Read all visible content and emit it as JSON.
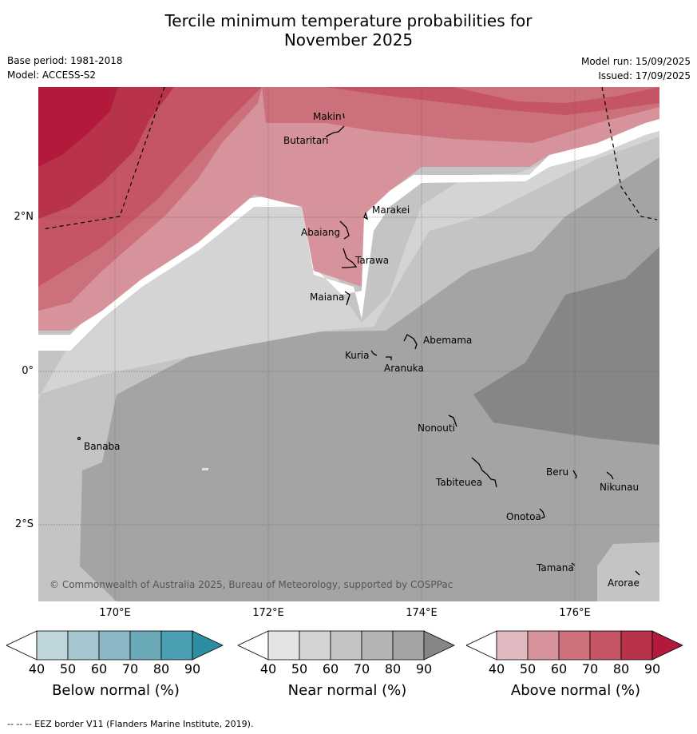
{
  "header": {
    "title_line1": "Tercile minimum temperature probabilities for",
    "title_line2": "November 2025",
    "base_period": "Base period: 1981-2018",
    "model": "Model: ACCESS-S2",
    "model_run": "Model run: 15/09/2025",
    "issued": "Issued: 17/09/2025"
  },
  "map": {
    "copyright": "© Commonwealth of Australia 2025, Bureau of Meteorology, supported by COSPPac",
    "lon_labels": [
      "170°E",
      "172°E",
      "174°E",
      "176°E"
    ],
    "lat_labels": [
      "2°N",
      "0°",
      "2°S"
    ],
    "places": [
      {
        "name": "Makin"
      },
      {
        "name": "Butaritari"
      },
      {
        "name": "Marakei"
      },
      {
        "name": "Abaiang"
      },
      {
        "name": "Tarawa"
      },
      {
        "name": "Maiana"
      },
      {
        "name": "Abemama"
      },
      {
        "name": "Kuria"
      },
      {
        "name": "Aranuka"
      },
      {
        "name": "Nonouti"
      },
      {
        "name": "Banaba"
      },
      {
        "name": "Beru"
      },
      {
        "name": "Nikunau"
      },
      {
        "name": "Tabiteuea"
      },
      {
        "name": "Onotoa"
      },
      {
        "name": "Tamana"
      },
      {
        "name": "Arorae"
      }
    ]
  },
  "colorbars": [
    {
      "title": "Below normal (%)",
      "ticks": [
        "40",
        "50",
        "60",
        "70",
        "80",
        "90"
      ],
      "colors": [
        "#ffffff",
        "#bfd5dc",
        "#a6c6cf",
        "#8ab7c3",
        "#6aa9b8",
        "#4aa0b2",
        "#2d8ea3"
      ]
    },
    {
      "title": "Near normal (%)",
      "ticks": [
        "40",
        "50",
        "60",
        "70",
        "80",
        "90"
      ],
      "colors": [
        "#ffffff",
        "#e3e3e3",
        "#d4d4d4",
        "#c4c4c4",
        "#b4b4b4",
        "#a4a4a4",
        "#868686"
      ]
    },
    {
      "title": "Above normal (%)",
      "ticks": [
        "40",
        "50",
        "60",
        "70",
        "80",
        "90"
      ],
      "colors": [
        "#ffffff",
        "#e1b9c0",
        "#d7939b",
        "#cc717b",
        "#c55564",
        "#b83349",
        "#b2193a"
      ]
    }
  ],
  "footer": "--  --  -- EEZ border V11 (Flanders Marine Institute, 2019)."
}
